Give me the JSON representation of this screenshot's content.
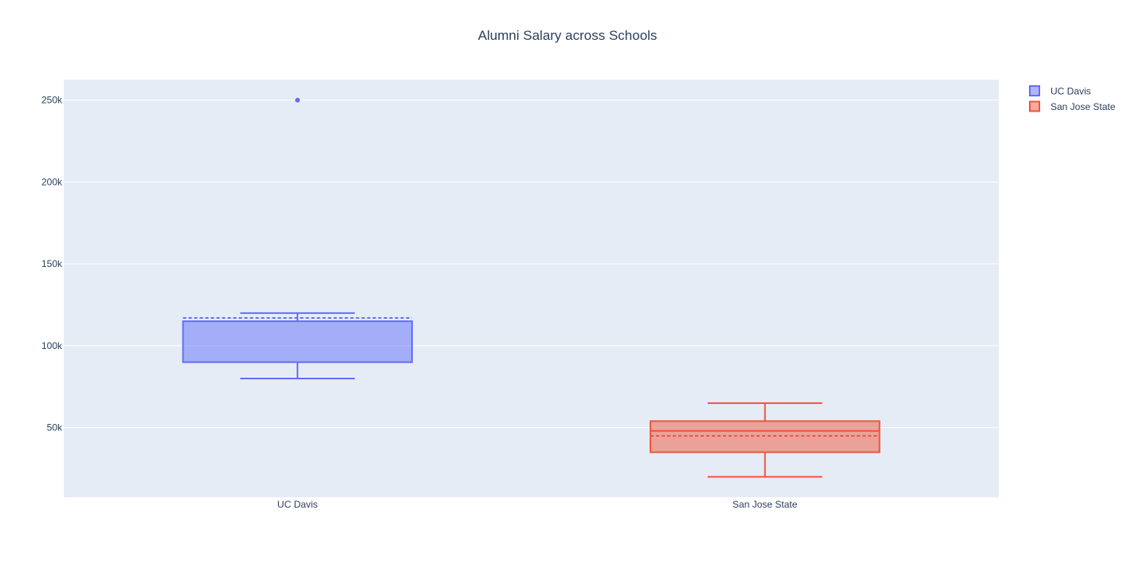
{
  "chart_data": {
    "type": "box",
    "title": "Alumni Salary across Schools",
    "xlabel": "",
    "ylabel": "",
    "categories": [
      "UC Davis",
      "San Jose State"
    ],
    "ylim": [
      7500,
      262500
    ],
    "y_ticks": [
      {
        "value": 50000,
        "label": "50k"
      },
      {
        "value": 100000,
        "label": "100k"
      },
      {
        "value": 150000,
        "label": "150k"
      },
      {
        "value": 200000,
        "label": "200k"
      },
      {
        "value": 250000,
        "label": "250k"
      }
    ],
    "grid": true,
    "legend": "top-right",
    "series": [
      {
        "name": "UC Davis",
        "category": "UC Davis",
        "color": "#636efa",
        "fill": "rgba(99,110,250,0.5)",
        "min": 80000,
        "q1": 90000,
        "median": 90000,
        "q3": 115000,
        "max": 120000,
        "mean": 117000,
        "outliers": [
          250000
        ]
      },
      {
        "name": "San Jose State",
        "category": "San Jose State",
        "color": "#ef553b",
        "fill": "rgba(239,85,59,0.5)",
        "min": 20000,
        "q1": 35000,
        "median": 48000,
        "q3": 54000,
        "max": 65000,
        "mean": 45000,
        "outliers": []
      }
    ]
  },
  "colors": {
    "plot_background": "#e5ecf6",
    "grid": "#ffffff",
    "text": "#2a3f5f"
  }
}
